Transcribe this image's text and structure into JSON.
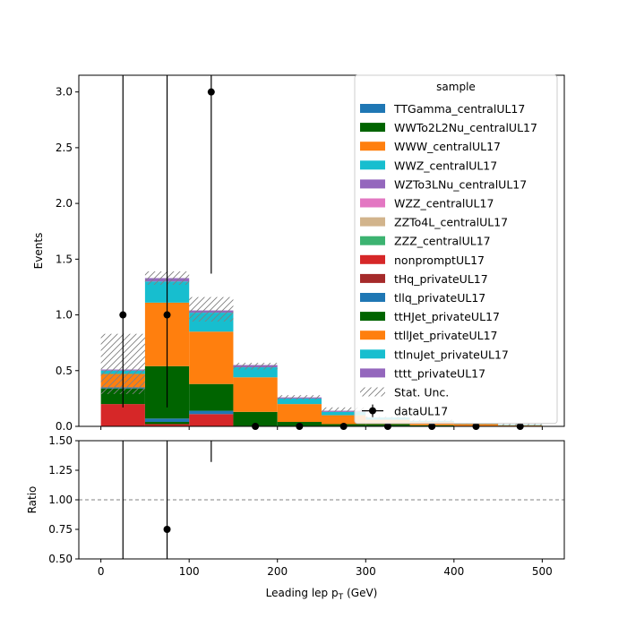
{
  "chart_data": [
    {
      "type": "bar",
      "stacked": true,
      "panel": "main",
      "ylabel": "Events",
      "xlim": [
        -25,
        525
      ],
      "ylim": [
        0,
        3.15
      ],
      "yticks": [
        0.0,
        0.5,
        1.0,
        1.5,
        2.0,
        2.5,
        3.0
      ],
      "ytick_labels": [
        "0.0",
        "0.5",
        "1.0",
        "1.5",
        "2.0",
        "2.5",
        "3.0"
      ],
      "bin_edges": [
        0,
        50,
        100,
        150,
        200,
        250,
        300,
        350,
        400,
        450,
        500
      ],
      "legend": {
        "title": "sample",
        "placement": "top-right"
      },
      "series": [
        {
          "name": "nonpromptUL17",
          "color": "#d62728",
          "values": [
            0.2,
            0.02,
            0.11,
            0.0,
            0.0,
            0.0,
            0.0,
            0.0,
            0.0,
            0.0
          ]
        },
        {
          "name": "ttHJet_privateUL17",
          "color": "#006400",
          "values": [
            0.14,
            0.02,
            0.0,
            0.13,
            0.04,
            0.02,
            0.02,
            0.01,
            0.005,
            0.005
          ]
        },
        {
          "name": "tllq_privateUL17",
          "color": "#1f77b4",
          "values": [
            0.01,
            0.03,
            0.03,
            0.0,
            0.0,
            0.0,
            0.0,
            0.0,
            0.0,
            0.0
          ]
        },
        {
          "name": "WWTo2L2Nu_centralUL17",
          "color": "#006400",
          "values": [
            0.0,
            0.47,
            0.24,
            0.0,
            0.0,
            0.0,
            0.0,
            0.0,
            0.0,
            0.0
          ]
        },
        {
          "name": "ttllJet_privateUL17",
          "color": "#ff7f0e",
          "values": [
            0.12,
            0.57,
            0.47,
            0.31,
            0.16,
            0.08,
            0.04,
            0.03,
            0.015,
            0.005
          ]
        },
        {
          "name": "ttlnuJet_privateUL17",
          "color": "#17becf",
          "values": [
            0.03,
            0.19,
            0.17,
            0.09,
            0.05,
            0.03,
            0.02,
            0.01,
            0.005,
            0.003
          ]
        },
        {
          "name": "tttt_privateUL17",
          "color": "#9467bd",
          "values": [
            0.01,
            0.03,
            0.02,
            0.02,
            0.01,
            0.01,
            0.0,
            0.0,
            0.0,
            0.0
          ]
        }
      ],
      "stat_unc": {
        "name": "Stat. Unc.",
        "low": [
          0.29,
          1.27,
          0.94,
          0.51,
          0.24,
          0.13,
          0.07,
          0.04,
          0.02,
          0.01
        ],
        "high": [
          0.83,
          1.39,
          1.16,
          0.57,
          0.28,
          0.17,
          0.09,
          0.06,
          0.03,
          0.02
        ]
      },
      "data": {
        "name": "dataUL17",
        "x": [
          25,
          75,
          125,
          175,
          225,
          275,
          325,
          375,
          425,
          475
        ],
        "y": [
          1,
          1,
          3,
          0,
          0,
          0,
          0,
          0,
          0,
          0
        ],
        "yerr_low": [
          0.83,
          0.83,
          1.63,
          0,
          0,
          0,
          0,
          0,
          0,
          0
        ],
        "yerr_high": [
          2.3,
          2.3,
          2.91,
          0,
          0,
          0,
          0,
          0,
          0,
          0
        ]
      },
      "legend_entries": [
        {
          "name": "TTGamma_centralUL17",
          "color": "#1f77b4",
          "kind": "patch"
        },
        {
          "name": "WWTo2L2Nu_centralUL17",
          "color": "#006400",
          "kind": "patch"
        },
        {
          "name": "WWW_centralUL17",
          "color": "#ff7f0e",
          "kind": "patch"
        },
        {
          "name": "WWZ_centralUL17",
          "color": "#17becf",
          "kind": "patch"
        },
        {
          "name": "WZTo3LNu_centralUL17",
          "color": "#9467bd",
          "kind": "patch"
        },
        {
          "name": "WZZ_centralUL17",
          "color": "#e377c2",
          "kind": "patch"
        },
        {
          "name": "ZZTo4L_centralUL17",
          "color": "#d2b48c",
          "kind": "patch"
        },
        {
          "name": "ZZZ_centralUL17",
          "color": "#3cb371",
          "kind": "patch"
        },
        {
          "name": "nonpromptUL17",
          "color": "#d62728",
          "kind": "patch"
        },
        {
          "name": "tHq_privateUL17",
          "color": "#a52a2a",
          "kind": "patch"
        },
        {
          "name": "tllq_privateUL17",
          "color": "#1f77b4",
          "kind": "patch"
        },
        {
          "name": "ttHJet_privateUL17",
          "color": "#006400",
          "kind": "patch"
        },
        {
          "name": "ttllJet_privateUL17",
          "color": "#ff7f0e",
          "kind": "patch"
        },
        {
          "name": "ttlnuJet_privateUL17",
          "color": "#17becf",
          "kind": "patch"
        },
        {
          "name": "tttt_privateUL17",
          "color": "#9467bd",
          "kind": "patch"
        },
        {
          "name": "Stat. Unc.",
          "color": "#808080",
          "kind": "hatch"
        },
        {
          "name": "dataUL17",
          "color": "#000000",
          "kind": "errorbar"
        }
      ]
    },
    {
      "type": "scatter",
      "panel": "ratio",
      "xlabel": "Leading lep pT (GeV)",
      "xlabel_main": "Leading lep p",
      "xlabel_sub": "T",
      "xlabel_unit": "(GeV)",
      "ylabel": "Ratio",
      "xlim": [
        -25,
        525
      ],
      "ylim": [
        0.5,
        1.5
      ],
      "reference_line": 1.0,
      "xticks": [
        0,
        100,
        200,
        300,
        400,
        500
      ],
      "xtick_labels": [
        "0",
        "100",
        "200",
        "300",
        "400",
        "500"
      ],
      "yticks": [
        0.5,
        0.75,
        1.0,
        1.25,
        1.5
      ],
      "ytick_labels": [
        "0.50",
        "0.75",
        "1.00",
        "1.25",
        "1.50"
      ],
      "points": [
        {
          "x": 25,
          "y": null,
          "err_low": 0.5,
          "err_high": 1.5
        },
        {
          "x": 75,
          "y": 0.75,
          "err_low": 0.25,
          "err_high": 1.5
        },
        {
          "x": 125,
          "y": null,
          "err_low": 1.32,
          "err_high": 1.5
        }
      ]
    }
  ]
}
